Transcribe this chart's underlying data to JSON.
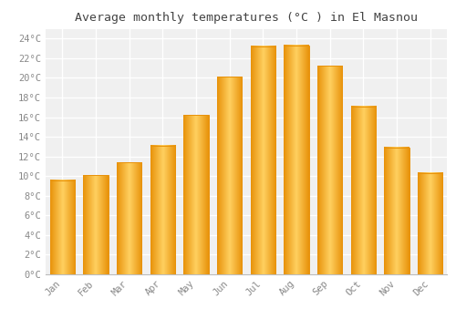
{
  "title": "Average monthly temperatures (°C ) in El Masnou",
  "months": [
    "Jan",
    "Feb",
    "Mar",
    "Apr",
    "May",
    "Jun",
    "Jul",
    "Aug",
    "Sep",
    "Oct",
    "Nov",
    "Dec"
  ],
  "temperatures": [
    9.6,
    10.1,
    11.4,
    13.1,
    16.2,
    20.1,
    23.2,
    23.3,
    21.2,
    17.1,
    12.9,
    10.3
  ],
  "bar_color_main": "#FFAA00",
  "bar_color_edge": "#E8920A",
  "bar_color_light": "#FFD060",
  "background_color": "#FFFFFF",
  "plot_bg_color": "#F0F0F0",
  "grid_color": "#FFFFFF",
  "title_fontsize": 9.5,
  "tick_fontsize": 7.5,
  "ylim": [
    0,
    25
  ],
  "yticks": [
    0,
    2,
    4,
    6,
    8,
    10,
    12,
    14,
    16,
    18,
    20,
    22,
    24
  ]
}
